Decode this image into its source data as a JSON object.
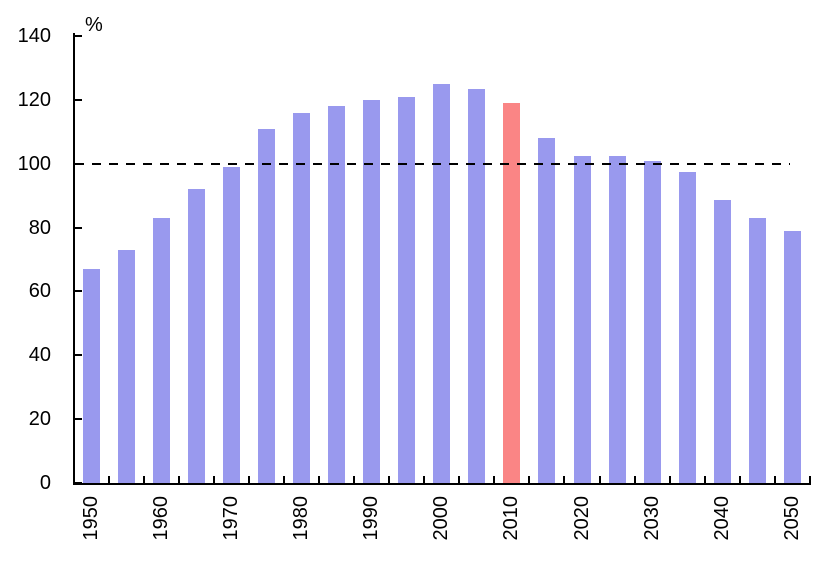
{
  "chart_data": {
    "type": "bar",
    "title": "",
    "ylabel_unit": "%",
    "categories": [
      "1950",
      "1955",
      "1960",
      "1965",
      "1970",
      "1975",
      "1980",
      "1985",
      "1990",
      "1995",
      "2000",
      "2005",
      "2010",
      "2015",
      "2020",
      "2025",
      "2030",
      "2035",
      "2040",
      "2045",
      "2050"
    ],
    "values": [
      67,
      73,
      83,
      92,
      99,
      111,
      116,
      118,
      120,
      121,
      125,
      123.5,
      119,
      108,
      102.5,
      102.5,
      101,
      97.5,
      88.5,
      83,
      79
    ],
    "highlight_category": "2010",
    "xtick_labels": [
      "1950",
      "1960",
      "1970",
      "1980",
      "1990",
      "2000",
      "2010",
      "2020",
      "2030",
      "2040",
      "2050"
    ],
    "yticks": [
      "0",
      "20",
      "40",
      "60",
      "80",
      "100",
      "120",
      "140"
    ],
    "ylim": [
      0,
      140
    ],
    "reference_line": 100,
    "reference_line_style": "dashed",
    "grid": false,
    "legend": "none",
    "colors": {
      "bar": "#9999EE",
      "highlight_bar": "#FA8585",
      "axis": "#000000",
      "reference_line": "#000000",
      "background": "#FFFFFF",
      "text": "#000000"
    }
  }
}
